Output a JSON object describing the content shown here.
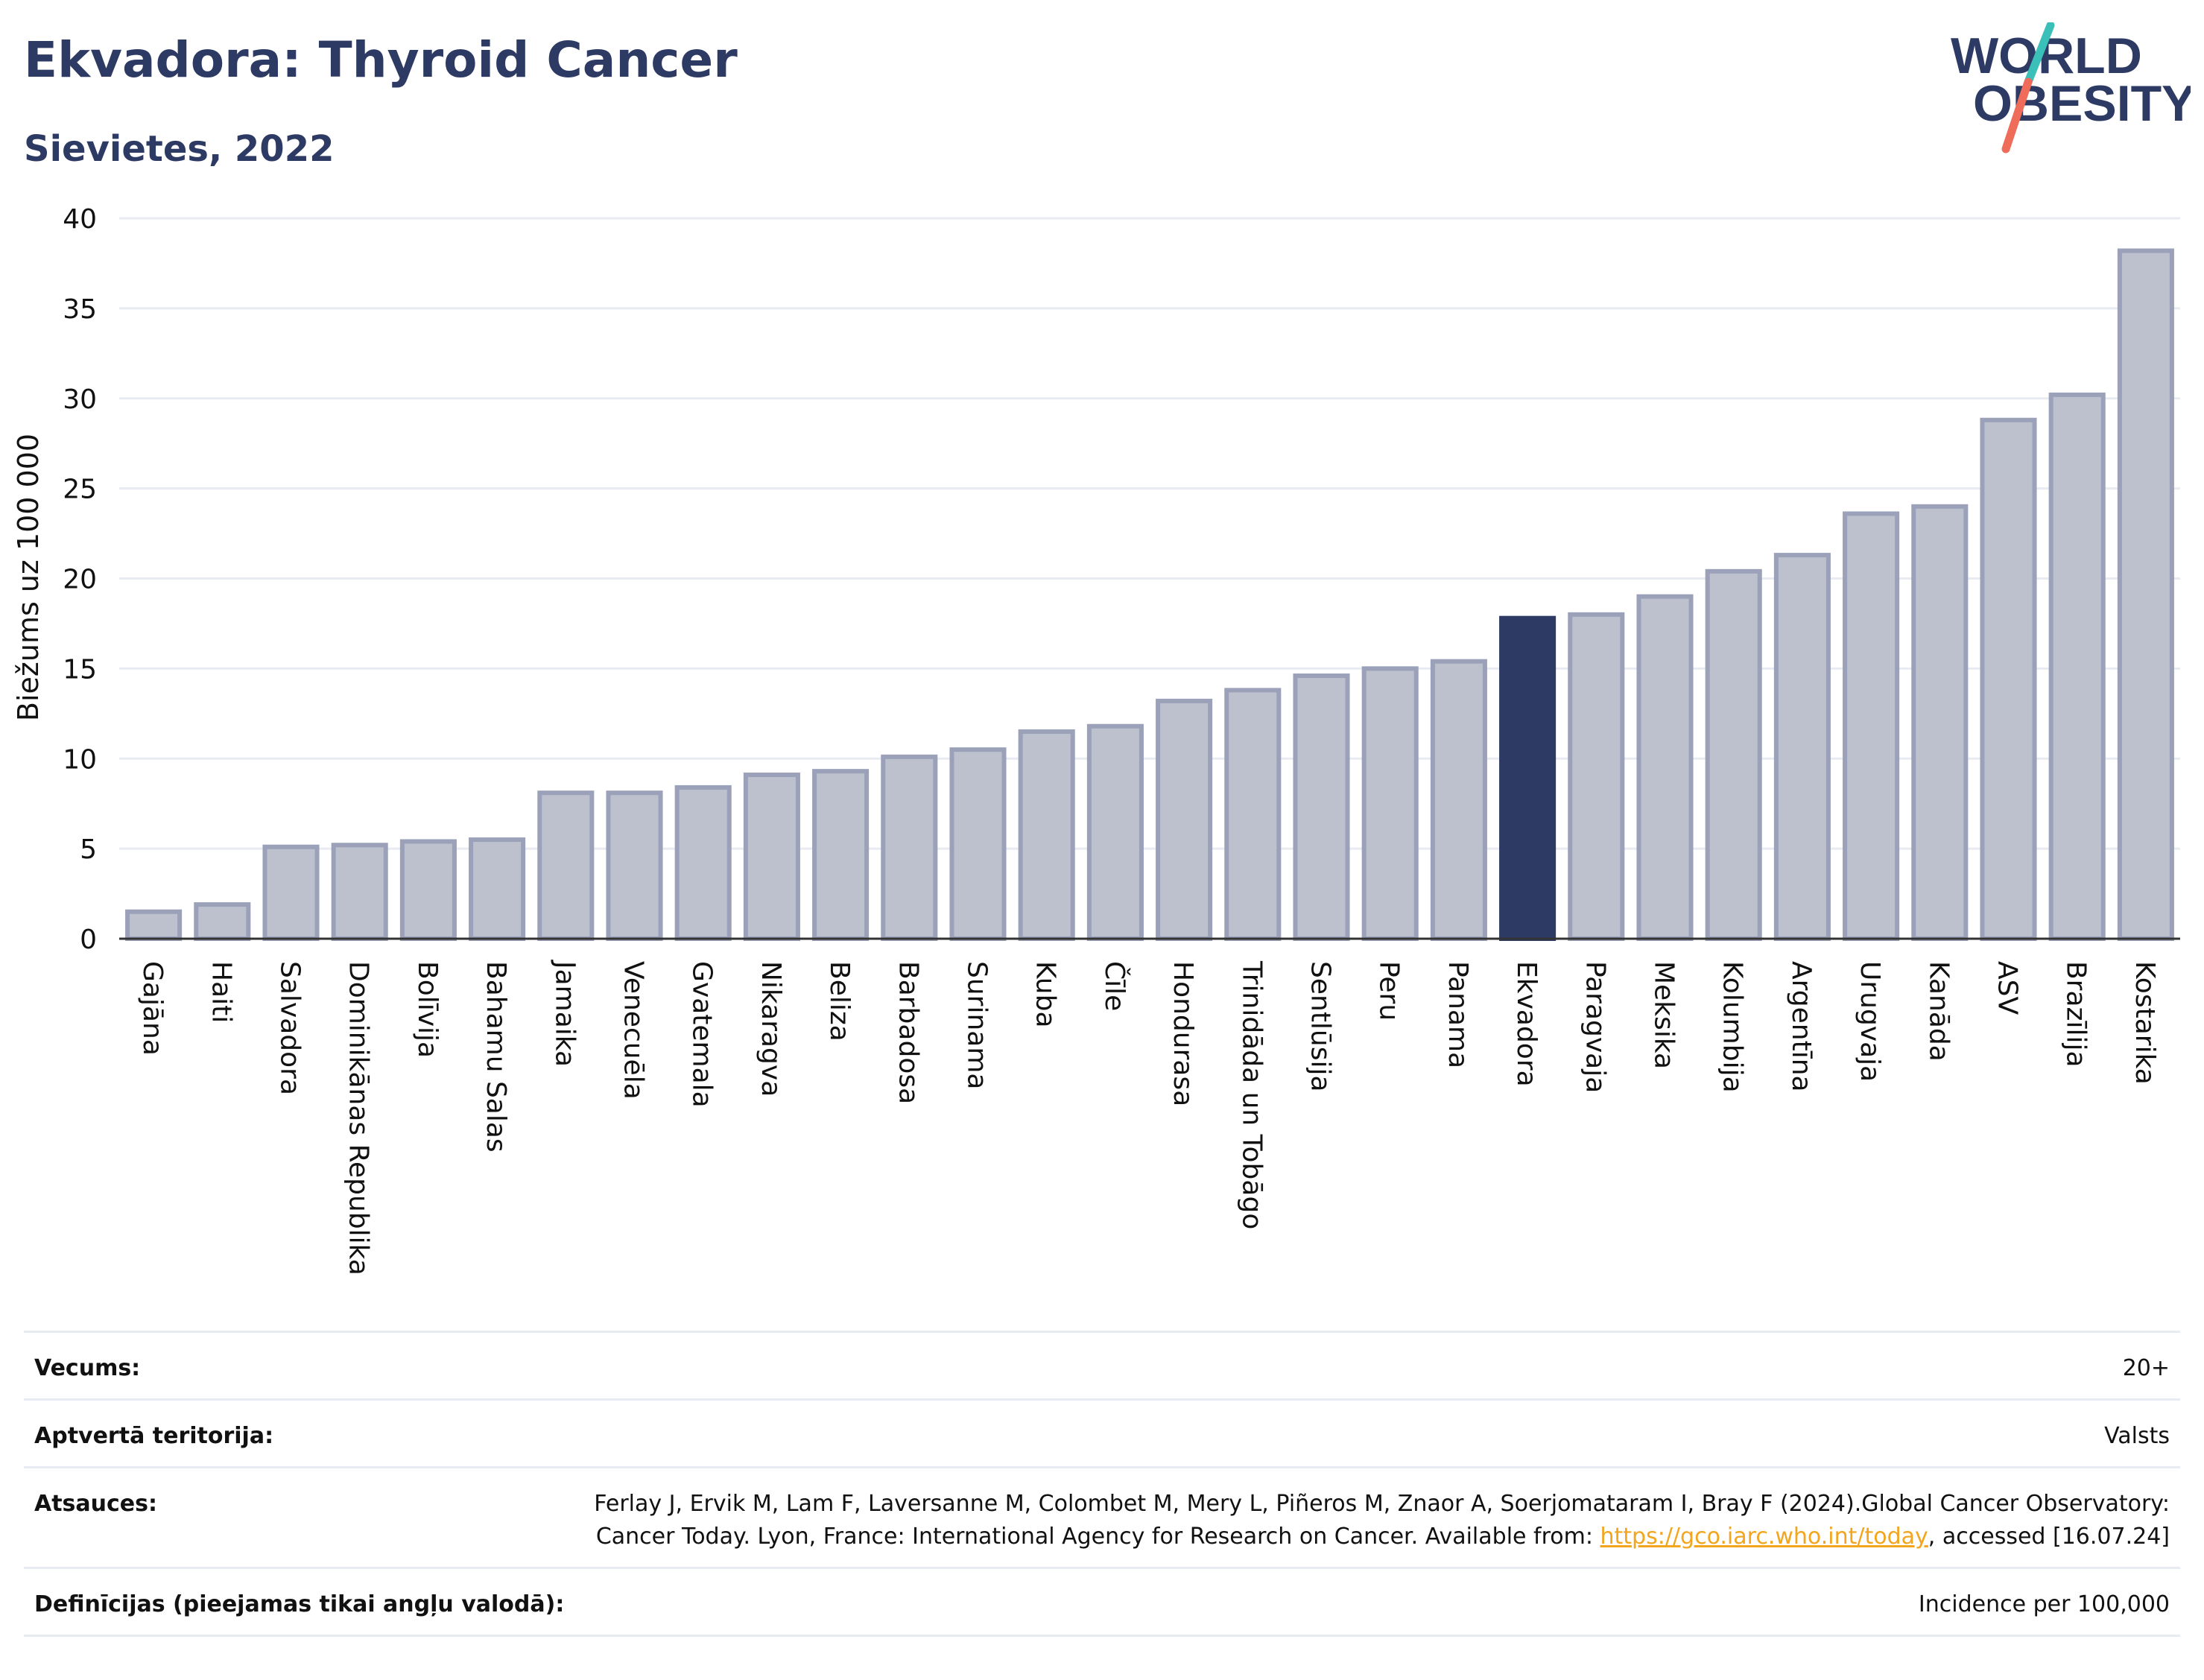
{
  "header": {
    "title": "Ekvadora: Thyroid Cancer",
    "subtitle": "Sievietes, 2022"
  },
  "logo": {
    "line1": "WORLD",
    "line2": "OBESITY",
    "slash_colors": [
      "#3bbfb9",
      "#ef6b5a"
    ],
    "text_color": "#2d3a64"
  },
  "colors": {
    "bar_fill": "#bdc1ce",
    "bar_stroke": "#9aa1b8",
    "highlight": "#2d3a64",
    "grid": "#e8ebf1"
  },
  "chart_data": {
    "type": "bar",
    "title": "",
    "xlabel": "",
    "ylabel": "Biežums uz 100 000",
    "ylim": [
      0,
      40
    ],
    "yticks": [
      0,
      5,
      10,
      15,
      20,
      25,
      30,
      35,
      40
    ],
    "grid": true,
    "highlight": "Ekvadora",
    "categories": [
      "Gajāna",
      "Haiti",
      "Salvadora",
      "Dominikānas Republika",
      "Bolīvija",
      "Bahamu Salas",
      "Jamaika",
      "Venecuēla",
      "Gvatemala",
      "Nikaragva",
      "Beliza",
      "Barbadosa",
      "Surinama",
      "Kuba",
      "Čīle",
      "Hondurasa",
      "Trinidāda un Tobāgo",
      "Sentlūsija",
      "Peru",
      "Panama",
      "Ekvadora",
      "Paragvaja",
      "Meksika",
      "Kolumbija",
      "Argentīna",
      "Urugvaja",
      "Kanāda",
      "ASV",
      "Brazīlija",
      "Kostarika"
    ],
    "values": [
      1.5,
      1.9,
      5.1,
      5.2,
      5.4,
      5.5,
      8.1,
      8.1,
      8.4,
      9.1,
      9.3,
      10.1,
      10.5,
      11.5,
      11.8,
      13.2,
      13.8,
      14.6,
      15.0,
      15.4,
      17.8,
      18.0,
      19.0,
      20.4,
      21.3,
      23.6,
      24.0,
      28.8,
      30.2,
      38.2
    ]
  },
  "meta": [
    {
      "label": "Vecums:",
      "value": "20+"
    },
    {
      "label": "Aptvertā teritorija:",
      "value": "Valsts"
    },
    {
      "label": "Atsauces:",
      "value": "Ferlay J, Ervik M, Lam F, Laversanne M, Colombet M, Mery L, Piñeros M, Znaor A, Soerjomataram I, Bray F (2024).Global Cancer Observatory: Cancer Today. Lyon, France: International Agency for Research on Cancer. Available from:",
      "link": "https://gco.iarc.who.int/today",
      "suffix": ", accessed [16.07.24]"
    },
    {
      "label": "Definīcijas (pieejamas tikai angļu valodā):",
      "value": "Incidence per 100,000"
    }
  ]
}
